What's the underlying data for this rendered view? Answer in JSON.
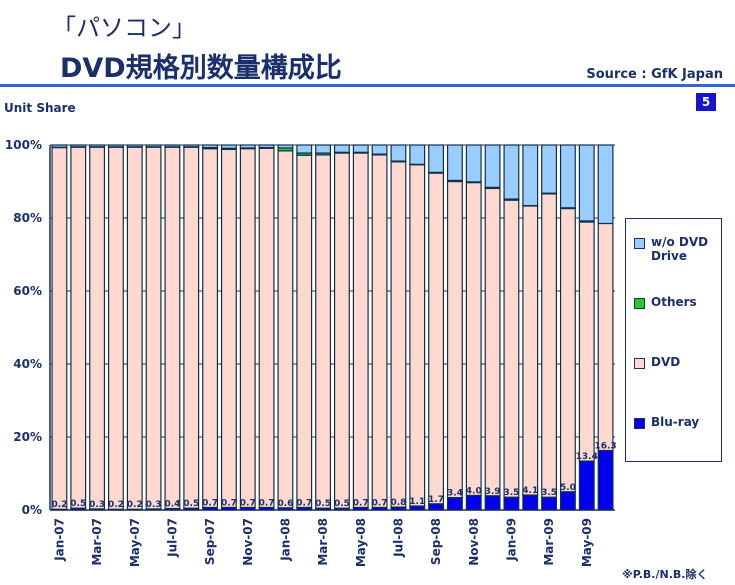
{
  "header": {
    "title_line1": "「パソコン」",
    "title_line2": "DVD規格別数量構成比",
    "source": "Source : GfK Japan",
    "unit": "Unit Share",
    "page": "5",
    "note": "※P.B./N.B.除く"
  },
  "chart_data": {
    "type": "bar",
    "stacked": true,
    "ylabel": "Unit Share",
    "ylim": [
      0,
      100
    ],
    "yticks": [
      "0%",
      "20%",
      "40%",
      "60%",
      "80%",
      "100%"
    ],
    "categories": [
      "Jan-07",
      "Feb-07",
      "Mar-07",
      "Apr-07",
      "May-07",
      "Jun-07",
      "Jul-07",
      "Aug-07",
      "Sep-07",
      "Oct-07",
      "Nov-07",
      "Dec-07",
      "Jan-08",
      "Feb-08",
      "Mar-08",
      "Apr-08",
      "May-08",
      "Jun-08",
      "Jul-08",
      "Aug-08",
      "Sep-08",
      "Oct-08",
      "Nov-08",
      "Dec-08",
      "Jan-09",
      "Feb-09",
      "Mar-09",
      "Apr-09",
      "May-09",
      "Jun-09"
    ],
    "xtick_labels": [
      "Jan-07",
      "Mar-07",
      "May-07",
      "Jul-07",
      "Sep-07",
      "Nov-07",
      "Jan-08",
      "Mar-08",
      "May-08",
      "Jul-08",
      "Sep-08",
      "Nov-08",
      "Jan-09",
      "Mar-09",
      "May-09"
    ],
    "legend_position": "right",
    "series": [
      {
        "name": "Blu-ray",
        "color": "#0000ee",
        "values": [
          0.2,
          0.5,
          0.3,
          0.2,
          0.2,
          0.3,
          0.4,
          0.5,
          0.7,
          0.7,
          0.7,
          0.7,
          0.6,
          0.7,
          0.5,
          0.5,
          0.7,
          0.7,
          0.8,
          1.1,
          1.7,
          3.4,
          4.0,
          3.9,
          3.5,
          4.1,
          3.5,
          5.0,
          13.4,
          16.3
        ]
      },
      {
        "name": "DVD",
        "color": "#ffd8d0",
        "values": [
          99.1,
          98.9,
          99.1,
          99.2,
          99.2,
          99.1,
          99.0,
          98.9,
          98.3,
          98.1,
          98.3,
          98.4,
          97.8,
          96.5,
          96.8,
          97.3,
          97.1,
          96.6,
          94.6,
          93.5,
          90.6,
          86.6,
          85.7,
          84.2,
          81.4,
          79.2,
          83.1,
          77.6,
          65.5,
          62.2
        ]
      },
      {
        "name": "Others",
        "color": "#22cc22",
        "values": [
          0.1,
          0.1,
          0.1,
          0.1,
          0.1,
          0.1,
          0.1,
          0.1,
          0.3,
          0.3,
          0.2,
          0.2,
          0.8,
          0.6,
          0.5,
          0.2,
          0.2,
          0.2,
          0.2,
          0.1,
          0.2,
          0.3,
          0.2,
          0.3,
          0.3,
          0.1,
          0.2,
          0.2,
          0.3,
          0.0
        ]
      },
      {
        "name": "w/o DVD Drive",
        "color": "#99ccff",
        "values": [
          0.6,
          0.5,
          0.5,
          0.5,
          0.5,
          0.5,
          0.5,
          0.5,
          0.7,
          0.9,
          0.8,
          0.7,
          0.8,
          2.2,
          2.2,
          2.0,
          2.0,
          2.5,
          4.4,
          5.3,
          7.5,
          9.7,
          10.1,
          11.6,
          14.8,
          16.6,
          13.2,
          17.2,
          20.8,
          21.5
        ]
      }
    ],
    "legend": [
      "w/o DVD Drive",
      "Others",
      "DVD",
      "Blu-ray"
    ]
  }
}
